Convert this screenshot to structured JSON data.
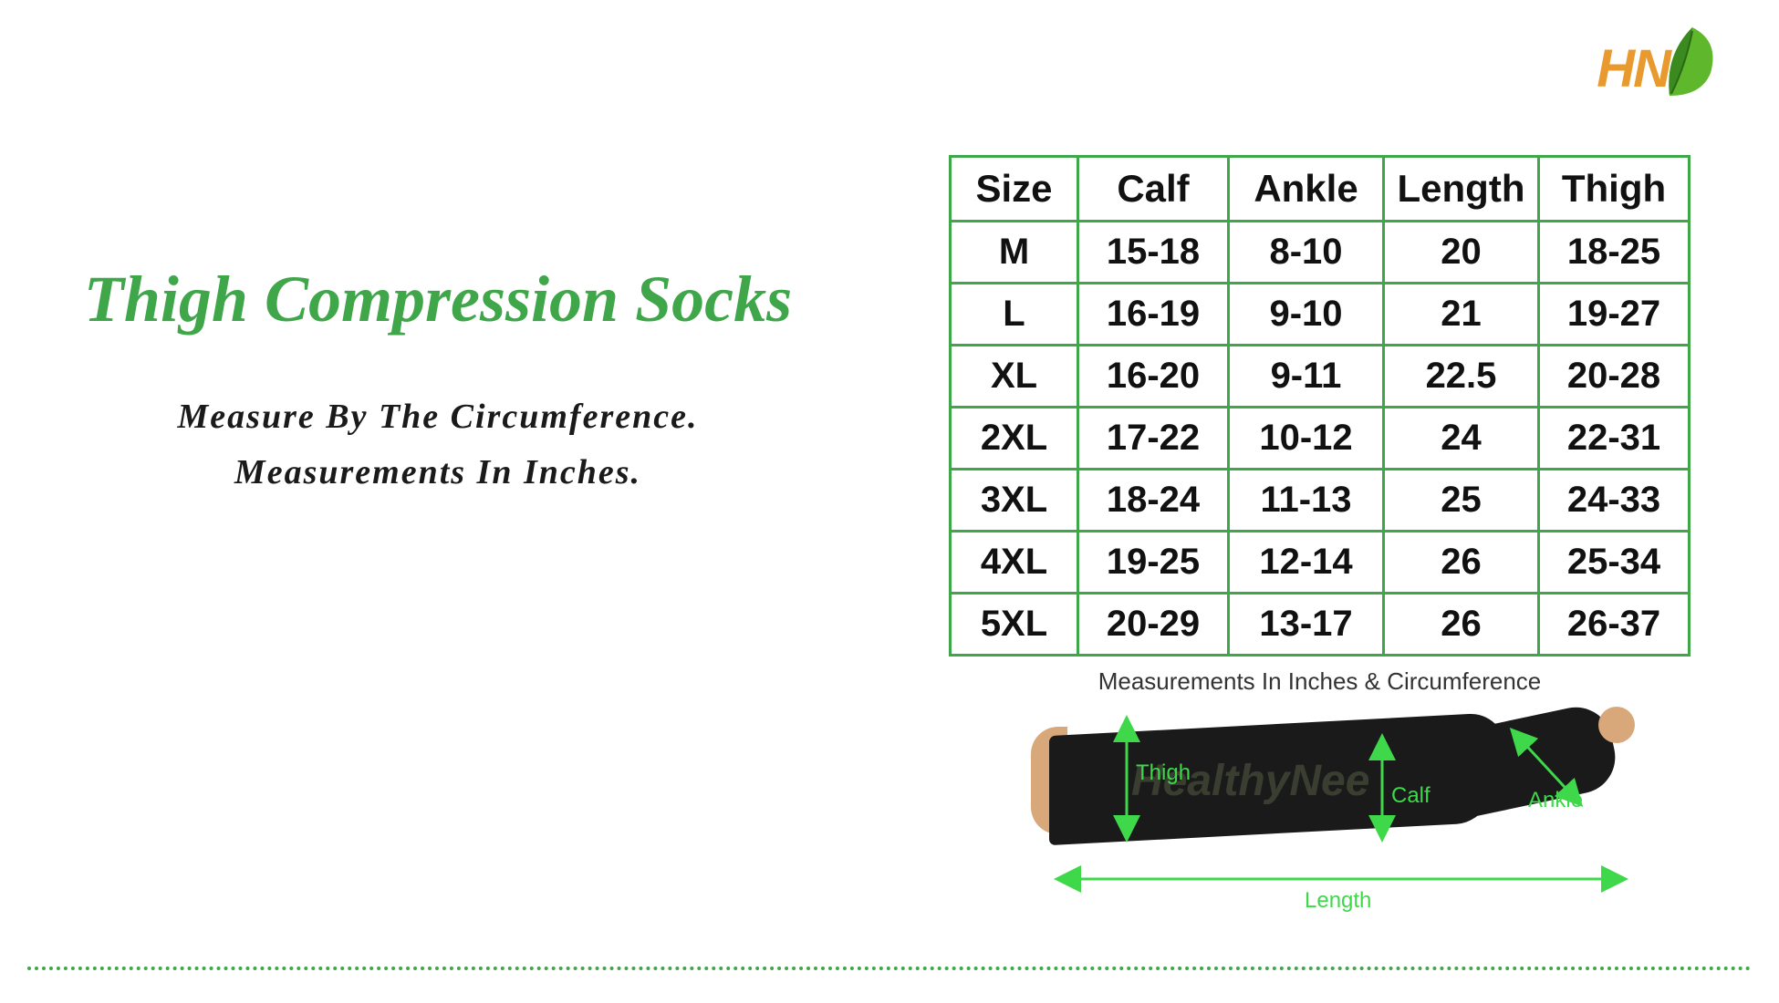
{
  "logo": {
    "text": "HN"
  },
  "title": "Thigh Compression Socks",
  "subtitle_line1": "Measure By The Circumference.",
  "subtitle_line2": "Measurements In Inches.",
  "table": {
    "columns": [
      "Size",
      "Calf",
      "Ankle",
      "Length",
      "Thigh"
    ],
    "col_widths": [
      "col-size",
      "col-calf",
      "col-ankle",
      "col-len",
      "col-thigh"
    ],
    "rows": [
      [
        "M",
        "15-18",
        "8-10",
        "20",
        "18-25"
      ],
      [
        "L",
        "16-19",
        "9-10",
        "21",
        "19-27"
      ],
      [
        "XL",
        "16-20",
        "9-11",
        "22.5",
        "20-28"
      ],
      [
        "2XL",
        "17-22",
        "10-12",
        "24",
        "22-31"
      ],
      [
        "3XL",
        "18-24",
        "11-13",
        "25",
        "24-33"
      ],
      [
        "4XL",
        "19-25",
        "12-14",
        "26",
        "25-34"
      ],
      [
        "5XL",
        "20-29",
        "13-17",
        "26",
        "26-37"
      ]
    ],
    "border_color": "#3fa64a",
    "header_fontsize": 42,
    "cell_fontsize": 40
  },
  "diagram": {
    "caption": "Measurements In Inches & Circumference",
    "labels": {
      "thigh": "Thigh",
      "calf": "Calf",
      "ankle": "Ankle",
      "length": "Length"
    },
    "watermark": "HealthyNee",
    "arrow_color": "#3fd84a"
  },
  "colors": {
    "title_green": "#3fa64a",
    "logo_orange": "#e89a2e",
    "leaf_green": "#5fb82b",
    "arrow_green": "#3fd84a",
    "skin": "#d9a87a",
    "background": "#ffffff"
  }
}
